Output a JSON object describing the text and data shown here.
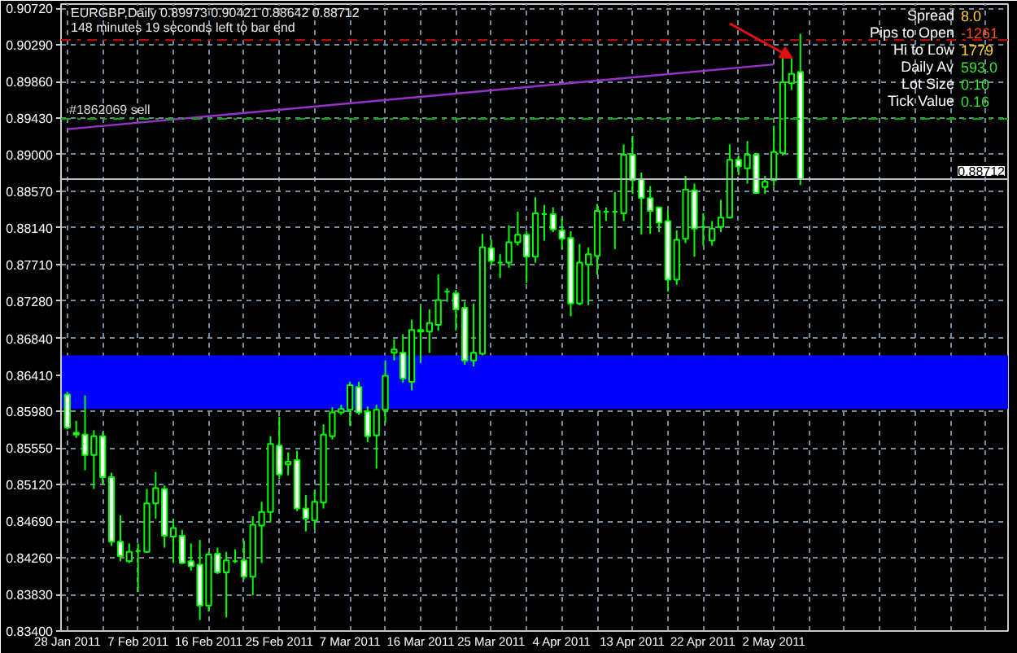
{
  "chart_data": {
    "type": "candlestick",
    "title": "EURGBP,Daily  0.89973 0.90421 0.88642 0.88712",
    "subtitle": "148 minutes 19 seconds left to bar end",
    "categories": [
      "28 Jan 2011",
      null,
      null,
      null,
      null,
      null,
      null,
      null,
      "7 Feb 2011",
      null,
      null,
      null,
      null,
      null,
      null,
      null,
      "16 Feb 2011",
      null,
      null,
      null,
      null,
      null,
      null,
      null,
      "25 Feb 2011",
      null,
      null,
      null,
      null,
      null,
      null,
      null,
      "7 Mar 2011",
      null,
      null,
      null,
      null,
      null,
      null,
      null,
      "16 Mar 2011",
      null,
      null,
      null,
      null,
      null,
      null,
      null,
      "25 Mar 2011",
      null,
      null,
      null,
      null,
      null,
      null,
      null,
      "4 Apr 2011",
      null,
      null,
      null,
      null,
      null,
      null,
      null,
      "13 Apr 2011",
      null,
      null,
      null,
      null,
      null,
      null,
      null,
      "22 Apr 2011",
      null,
      null,
      null,
      null,
      null,
      null,
      null,
      "2 May 2011",
      null,
      null,
      null
    ],
    "ohlc": [
      [
        0.8618,
        0.8621,
        0.8577,
        0.8579
      ],
      [
        0.8573,
        0.8587,
        0.8567,
        0.8571
      ],
      [
        0.8571,
        0.8617,
        0.8529,
        0.8547
      ],
      [
        0.8547,
        0.8576,
        0.8507,
        0.8569
      ],
      [
        0.8569,
        0.8574,
        0.8512,
        0.8521
      ],
      [
        0.8521,
        0.8526,
        0.844,
        0.8445
      ],
      [
        0.8445,
        0.8476,
        0.8422,
        0.8428
      ],
      [
        0.8422,
        0.8443,
        0.842,
        0.8433
      ],
      [
        0.8434,
        0.8443,
        0.8386,
        0.8434
      ],
      [
        0.8433,
        0.8507,
        0.8432,
        0.849
      ],
      [
        0.849,
        0.8527,
        0.8472,
        0.8508
      ],
      [
        0.8507,
        0.8511,
        0.8438,
        0.8452
      ],
      [
        0.8451,
        0.8472,
        0.842,
        0.8461
      ],
      [
        0.8452,
        0.8459,
        0.8419,
        0.842
      ],
      [
        0.8422,
        0.8443,
        0.8411,
        0.8416
      ],
      [
        0.8418,
        0.8447,
        0.8353,
        0.837
      ],
      [
        0.837,
        0.8433,
        0.8363,
        0.843
      ],
      [
        0.8431,
        0.8438,
        0.8407,
        0.8409
      ],
      [
        0.8409,
        0.8433,
        0.8356,
        0.8423
      ],
      [
        0.8422,
        0.8436,
        0.842,
        0.8422
      ],
      [
        0.8423,
        0.8446,
        0.8401,
        0.8404
      ],
      [
        0.8404,
        0.8475,
        0.8382,
        0.8465
      ],
      [
        0.8464,
        0.8492,
        0.842,
        0.848
      ],
      [
        0.848,
        0.8569,
        0.8468,
        0.856
      ],
      [
        0.8558,
        0.8592,
        0.8519,
        0.8524
      ],
      [
        0.8536,
        0.855,
        0.8523,
        0.8539
      ],
      [
        0.8541,
        0.8552,
        0.8481,
        0.8484
      ],
      [
        0.8484,
        0.85,
        0.8457,
        0.8472
      ],
      [
        0.847,
        0.8505,
        0.846,
        0.8492
      ],
      [
        0.8491,
        0.8583,
        0.8484,
        0.8571
      ],
      [
        0.8569,
        0.8603,
        0.8565,
        0.8597
      ],
      [
        0.8597,
        0.8606,
        0.8594,
        0.8601
      ],
      [
        0.86,
        0.8633,
        0.8581,
        0.8629
      ],
      [
        0.8627,
        0.8633,
        0.8594,
        0.8597
      ],
      [
        0.8598,
        0.8604,
        0.8562,
        0.8569
      ],
      [
        0.857,
        0.8606,
        0.8531,
        0.86
      ],
      [
        0.86,
        0.8658,
        0.8585,
        0.864
      ],
      [
        0.8667,
        0.8683,
        0.8658,
        0.8671
      ],
      [
        0.8667,
        0.8689,
        0.8632,
        0.8637
      ],
      [
        0.8633,
        0.8706,
        0.8623,
        0.8694
      ],
      [
        0.8694,
        0.8722,
        0.8655,
        0.8692
      ],
      [
        0.8692,
        0.8718,
        0.8667,
        0.8702
      ],
      [
        0.87,
        0.8759,
        0.8693,
        0.8729
      ],
      [
        0.8739,
        0.8743,
        0.8727,
        0.8739
      ],
      [
        0.8737,
        0.8741,
        0.8693,
        0.8718
      ],
      [
        0.872,
        0.8727,
        0.8653,
        0.8658
      ],
      [
        0.8658,
        0.8725,
        0.8651,
        0.8667
      ],
      [
        0.8666,
        0.8807,
        0.8664,
        0.8791
      ],
      [
        0.879,
        0.88,
        0.877,
        0.8775
      ],
      [
        0.8773,
        0.8783,
        0.8755,
        0.8773
      ],
      [
        0.8773,
        0.8817,
        0.8767,
        0.8797
      ],
      [
        0.8797,
        0.8833,
        0.8793,
        0.8806
      ],
      [
        0.8806,
        0.881,
        0.8749,
        0.878
      ],
      [
        0.878,
        0.885,
        0.8773,
        0.8831
      ],
      [
        0.883,
        0.8841,
        0.8799,
        0.883
      ],
      [
        0.883,
        0.8838,
        0.8809,
        0.8812
      ],
      [
        0.8811,
        0.8825,
        0.8789,
        0.8801
      ],
      [
        0.8802,
        0.881,
        0.871,
        0.8725
      ],
      [
        0.8725,
        0.8795,
        0.8723,
        0.8773
      ],
      [
        0.8771,
        0.8791,
        0.8723,
        0.8783
      ],
      [
        0.8781,
        0.8842,
        0.8759,
        0.8834
      ],
      [
        0.8833,
        0.8838,
        0.8822,
        0.8833
      ],
      [
        0.8833,
        0.8856,
        0.8789,
        0.8833
      ],
      [
        0.8831,
        0.8912,
        0.8822,
        0.89
      ],
      [
        0.89,
        0.8922,
        0.8854,
        0.887
      ],
      [
        0.8871,
        0.8879,
        0.8806,
        0.8849
      ],
      [
        0.8849,
        0.8863,
        0.8807,
        0.8834
      ],
      [
        0.8838,
        0.8839,
        0.8809,
        0.882
      ],
      [
        0.8822,
        0.8834,
        0.8739,
        0.8753
      ],
      [
        0.8753,
        0.8811,
        0.8747,
        0.88
      ],
      [
        0.8801,
        0.8875,
        0.8796,
        0.8859
      ],
      [
        0.8858,
        0.8866,
        0.878,
        0.8813
      ],
      [
        0.8815,
        0.8831,
        0.8793,
        0.8815
      ],
      [
        0.8799,
        0.8822,
        0.8793,
        0.8813
      ],
      [
        0.8815,
        0.8847,
        0.8809,
        0.8826
      ],
      [
        0.8826,
        0.8912,
        0.8825,
        0.8894
      ],
      [
        0.8894,
        0.8899,
        0.8876,
        0.8886
      ],
      [
        0.8884,
        0.8916,
        0.8866,
        0.89
      ],
      [
        0.89,
        0.8902,
        0.8854,
        0.8855
      ],
      [
        0.8862,
        0.8875,
        0.8854,
        0.8868
      ],
      [
        0.887,
        0.8934,
        0.8863,
        0.8903
      ],
      [
        0.8902,
        0.9017,
        0.8899,
        0.8985
      ],
      [
        0.8984,
        0.9014,
        0.8976,
        0.8995
      ],
      [
        0.89973,
        0.90421,
        0.88642,
        0.88712
      ]
    ],
    "color": "#00ff00",
    "ylim": [
      0.834,
      0.9077
    ],
    "yticks": [
      {
        "value": 0.9072,
        "label": "0.90720"
      },
      {
        "value": 0.9029,
        "label": "0.90290"
      },
      {
        "value": 0.8986,
        "label": "0.89860"
      },
      {
        "value": 0.8943,
        "label": "0.89430"
      },
      {
        "value": 0.89,
        "label": "0.89000"
      },
      {
        "value": 0.8857,
        "label": "0.88570"
      },
      {
        "value": 0.8814,
        "label": "0.88140"
      },
      {
        "value": 0.8771,
        "label": "0.87710"
      },
      {
        "value": 0.8728,
        "label": "0.87280"
      },
      {
        "value": 0.8684,
        "label": "0.86840"
      },
      {
        "value": 0.8641,
        "label": "0.86410"
      },
      {
        "value": 0.8598,
        "label": "0.85980"
      },
      {
        "value": 0.8555,
        "label": "0.85550"
      },
      {
        "value": 0.8512,
        "label": "0.85120"
      },
      {
        "value": 0.8469,
        "label": "0.84690"
      },
      {
        "value": 0.8426,
        "label": "0.84260"
      },
      {
        "value": 0.8383,
        "label": "0.83830"
      },
      {
        "value": 0.834,
        "label": "0.83400"
      }
    ],
    "grid": true,
    "series": [
      {
        "type": "line",
        "color": "#9932cc",
        "x": [
          "28 Jan 2011",
          "2 May 2011"
        ],
        "values": [
          0.893,
          0.9006
        ]
      }
    ],
    "ref_lines": [
      {
        "axis": "y",
        "value": 0.9035,
        "color": "#c00000",
        "line_style": "dashdot"
      },
      {
        "axis": "y",
        "value": 0.8942,
        "label": "#1862069 sell",
        "color": "#00b000",
        "line_style": "dashdot"
      },
      {
        "axis": "y",
        "value": 0.88712,
        "label": "0.88712",
        "color": "#b4bcc8",
        "line_style": "solid"
      }
    ],
    "bands": [
      {
        "axis": "y",
        "from": 0.8601,
        "to": 0.8664,
        "color": "#0000ff"
      }
    ],
    "annotations": [
      "Spread",
      "8.0",
      "Pips to Open",
      "-1261",
      "Hi to Low",
      "1779",
      "Daily Av",
      "593.0",
      "Lot Size",
      "0.10",
      "Tick Value",
      "0.16"
    ]
  }
}
